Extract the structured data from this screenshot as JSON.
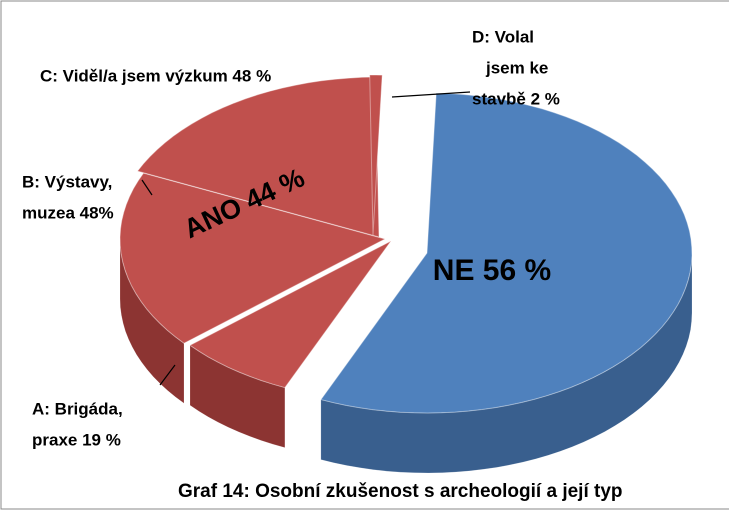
{
  "chart_data": {
    "type": "pie",
    "title": "Graf 14: Osobní zkušenost s archeologií a její typ",
    "groups": [
      {
        "name": "NE",
        "value": 56,
        "value_label": "NE 56 %",
        "color": "#4f81bd",
        "side_color": "#395f8e"
      },
      {
        "name": "ANO",
        "value": 44,
        "value_label": "ANO 44 %",
        "color": "#c0504d",
        "side_color": "#8c3432",
        "parts": [
          {
            "value": 19,
            "label_lines": [
              "A: Brigáda,",
              "praxe 19 %"
            ]
          },
          {
            "value": 48,
            "label_lines": [
              "B: Výstavy,",
              "muzea 48%"
            ]
          },
          {
            "value": 48,
            "label_lines": [
              "C: Viděl/a jsem výzkum 48 %"
            ]
          },
          {
            "value": 2,
            "label_lines": [
              "D: Volal",
              "jsem ke",
              "stavbě 2 %"
            ]
          }
        ]
      }
    ]
  }
}
